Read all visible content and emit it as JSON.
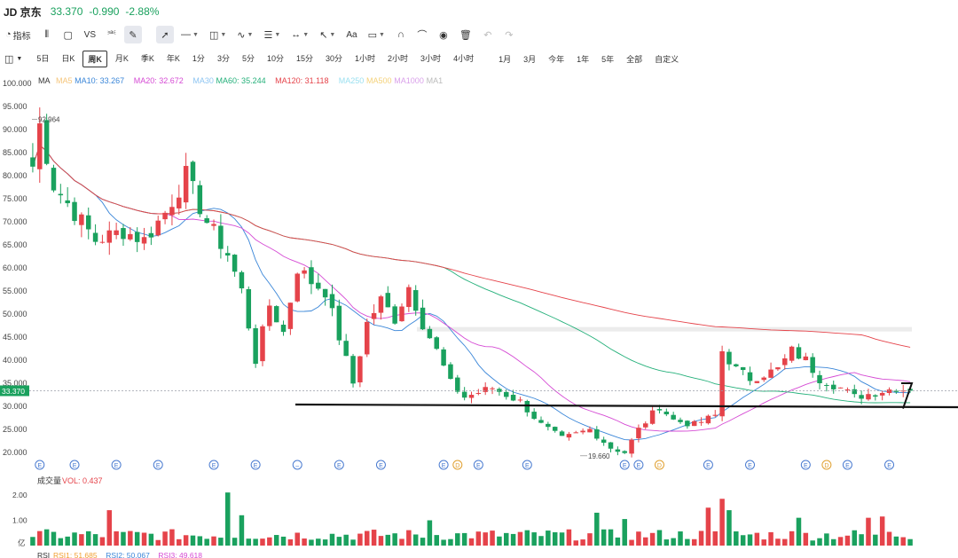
{
  "header": {
    "ticker": "JD 京东",
    "price": "33.370",
    "change": "-0.990",
    "change_pct": "-2.88%",
    "down_color": "#1aa15e",
    "up_color": "#e5434a"
  },
  "toolbar": {
    "indicators_label": "指标",
    "compare_label": "VS",
    "text_tool_label": "Aa"
  },
  "intervals": {
    "items": [
      "5日",
      "日K",
      "周K",
      "月K",
      "季K",
      "年K",
      "1分",
      "3分",
      "5分",
      "10分",
      "15分",
      "30分",
      "1小时",
      "2小时",
      "3小时",
      "4小时"
    ],
    "ranges": [
      "1月",
      "3月",
      "今年",
      "1年",
      "5年",
      "全部",
      "自定义"
    ],
    "active": "周K"
  },
  "ma_legend": {
    "title": "MA",
    "items": [
      {
        "text": "MA5",
        "color": "#f5c57a"
      },
      {
        "text": "MA10: 33.267",
        "color": "#3a86d8"
      },
      {
        "text": "MA20: 32.672",
        "color": "#d54ad4"
      },
      {
        "text": "MA30",
        "color": "#8ec5f2"
      },
      {
        "text": "MA60: 35.244",
        "color": "#24b07a"
      },
      {
        "text": "MA120: 31.118",
        "color": "#e5434a"
      },
      {
        "text": "MA250",
        "color": "#9be0f0"
      },
      {
        "text": "MA500",
        "color": "#f4d27a"
      },
      {
        "text": "MA1000",
        "color": "#d9a0ea"
      },
      {
        "text": "MA1",
        "color": "#bbbbbb"
      }
    ]
  },
  "chart_data": {
    "type": "candlestick",
    "y_axis_labels": [
      "100.000",
      "95.000",
      "90.000",
      "85.000",
      "80.000",
      "75.000",
      "70.000",
      "65.000",
      "60.000",
      "55.000",
      "50.000",
      "45.000",
      "40.000",
      "35.000",
      "30.000",
      "25.000",
      "20.000"
    ],
    "ylim": [
      19,
      100
    ],
    "current_price_label": "33.370",
    "current_price": 33.37,
    "high_annotation": {
      "text": "92.964",
      "value": 92.964
    },
    "low_annotation": {
      "text": "19.660",
      "value": 19.66
    },
    "support_line_value": 30.0,
    "resistance_zone_value": 46.8,
    "event_markers": [
      "E",
      "E",
      "E",
      "E",
      "E",
      "E",
      "–",
      "E",
      "E",
      "E",
      "D",
      "E",
      "E",
      "E",
      "E",
      "D",
      "E",
      "E",
      "E",
      "D",
      "E",
      "E"
    ],
    "event_marker_kinds": [
      "E",
      "E",
      "E",
      "E",
      "E",
      "E",
      "M",
      "E",
      "E",
      "E",
      "D",
      "E",
      "E",
      "E",
      "E",
      "D",
      "E",
      "E",
      "E",
      "D",
      "E",
      "E"
    ],
    "event_marker_bars": [
      1,
      6,
      12,
      18,
      26,
      32,
      38,
      44,
      50,
      59,
      61,
      64,
      71,
      85,
      87,
      90,
      97,
      103,
      111,
      114,
      117,
      123
    ],
    "price_keypoints": [
      [
        0,
        82
      ],
      [
        1,
        91
      ],
      [
        3,
        78
      ],
      [
        6,
        72
      ],
      [
        9,
        66
      ],
      [
        13,
        68
      ],
      [
        16,
        66
      ],
      [
        19,
        72
      ],
      [
        22,
        80
      ],
      [
        25,
        70
      ],
      [
        28,
        63
      ],
      [
        30,
        55
      ],
      [
        32,
        40
      ],
      [
        34,
        52
      ],
      [
        36,
        46
      ],
      [
        38,
        60
      ],
      [
        40,
        57
      ],
      [
        42,
        55
      ],
      [
        44,
        45
      ],
      [
        46,
        35
      ],
      [
        48,
        48
      ],
      [
        50,
        53
      ],
      [
        52,
        49
      ],
      [
        54,
        56
      ],
      [
        56,
        48
      ],
      [
        58,
        42
      ],
      [
        60,
        35
      ],
      [
        62,
        32
      ],
      [
        66,
        34
      ],
      [
        70,
        31
      ],
      [
        73,
        26
      ],
      [
        76,
        23
      ],
      [
        80,
        25
      ],
      [
        83,
        21
      ],
      [
        85,
        20
      ],
      [
        87,
        25
      ],
      [
        90,
        30
      ],
      [
        92,
        27
      ],
      [
        95,
        26
      ],
      [
        98,
        28
      ],
      [
        99,
        42
      ],
      [
        101,
        38
      ],
      [
        103,
        36
      ],
      [
        107,
        38
      ],
      [
        109,
        42
      ],
      [
        111,
        40
      ],
      [
        113,
        36
      ],
      [
        116,
        34
      ],
      [
        118,
        32
      ],
      [
        121,
        33
      ],
      [
        124,
        34
      ],
      [
        126,
        33.4
      ]
    ],
    "volume_axis_labels": [
      "2.00",
      "1.00",
      "亿"
    ],
    "volume_spikes": [
      [
        11,
        1.4
      ],
      [
        28,
        2.1
      ],
      [
        30,
        1.2
      ],
      [
        57,
        1.0
      ],
      [
        81,
        1.3
      ],
      [
        85,
        1.05
      ],
      [
        97,
        1.5
      ],
      [
        99,
        1.85
      ],
      [
        100,
        1.4
      ],
      [
        110,
        1.1
      ],
      [
        120,
        1.1
      ],
      [
        122,
        1.15
      ]
    ]
  },
  "volume_legend": {
    "title": "成交量",
    "items": [
      {
        "text": "VOL: 0.437",
        "color": "#e5434a"
      }
    ]
  },
  "rsi_legend": {
    "title": "RSI",
    "items": [
      {
        "text": "RSI1: 51.685",
        "color": "#f0a030"
      },
      {
        "text": "RSI2: 50.067",
        "color": "#3a86d8"
      },
      {
        "text": "RSI3: 49.618",
        "color": "#d54ad4"
      }
    ]
  }
}
